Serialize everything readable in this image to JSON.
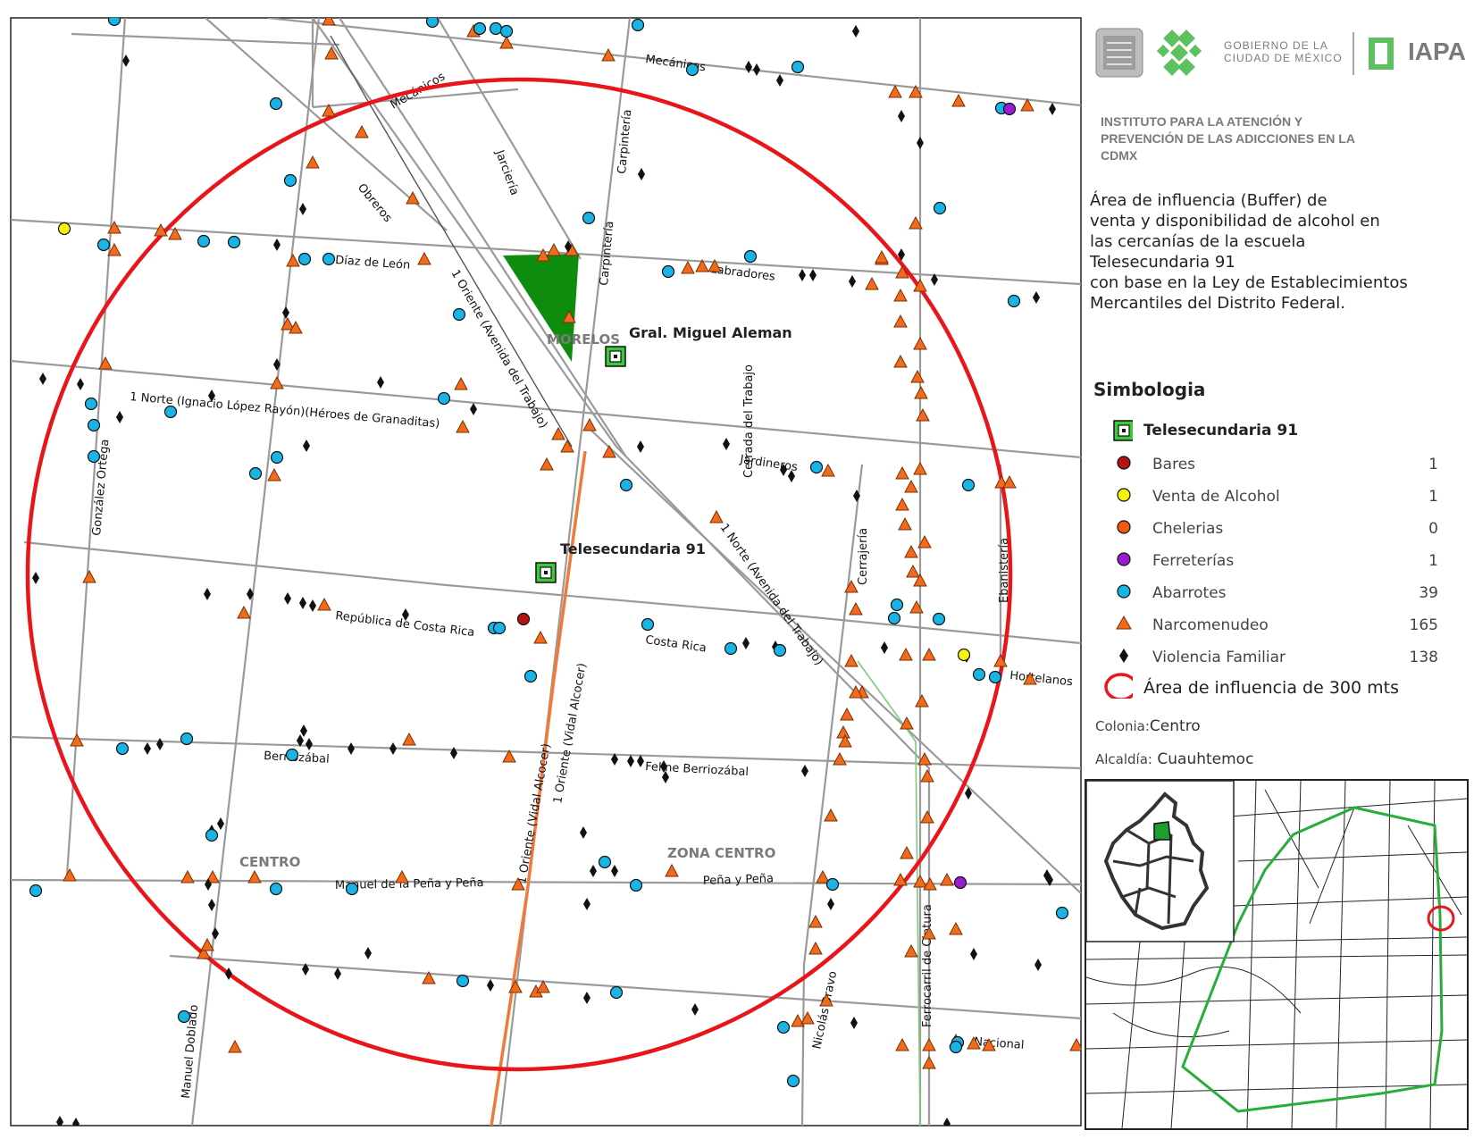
{
  "header": {
    "gov_line1": "GOBIERNO DE LA",
    "gov_line2": "CIUDAD DE MÉXICO",
    "brand": "IAPA",
    "institute": "INSTITUTO PARA LA ATENCIÓN Y PREVENCIÓN DE LAS ADICCIONES EN LA CDMX"
  },
  "description": {
    "line1": "Área de influencia (Buffer) de",
    "line2": "venta y disponibilidad de alcohol en",
    "line3": "las cercanías de la escuela",
    "line4": "Telesecundaria 91",
    "line5": "con base en la Ley de Establecimientos",
    "line6": "Mercantiles del Distrito Federal."
  },
  "legend": {
    "title": "Simbologia",
    "school": "Telesecundaria 91",
    "items": [
      {
        "label": "Bares",
        "count": "1",
        "color": "#b31313",
        "shape": "circle"
      },
      {
        "label": "Venta de Alcohol",
        "count": "1",
        "color": "#f5f50a",
        "shape": "circle"
      },
      {
        "label": "Chelerias",
        "count": "0",
        "color": "#f05a14",
        "shape": "circle"
      },
      {
        "label": "Ferreterías",
        "count": "1",
        "color": "#9b1bd1",
        "shape": "circle"
      },
      {
        "label": "Abarrotes",
        "count": "39",
        "color": "#1ab3e6",
        "shape": "circle"
      },
      {
        "label": "Narcomenudeo",
        "count": "165",
        "color": "#f26b1d",
        "shape": "triangle"
      },
      {
        "label": "Violencia Familiar",
        "count": "138",
        "color": "#111111",
        "shape": "diamond"
      }
    ],
    "area": "Área de influencia de 300 mts"
  },
  "meta": {
    "colonia_label": "Colonia:",
    "colonia": "Centro",
    "alcaldia_label": "Alcaldía:",
    "alcaldia": "Cuauhtemoc"
  },
  "map": {
    "places": [
      "MORELOS",
      "CENTRO",
      "ZONA CENTRO"
    ],
    "schools": [
      "Gral. Miguel Aleman",
      "Telesecundaria 91"
    ],
    "streets": [
      "Mecánicos",
      "Mecánicos",
      "Obreros",
      "Jarciería",
      "Carpintería",
      "Carpintería",
      "Díaz de León",
      "Labradores",
      "1 Oriente (Avenida del Trabajo)",
      "1 Norte (Ignacio López Rayón)(Héroes de Granaditas)",
      "González Ortega",
      "Cerrada del Trabajo",
      "Jardineros",
      "Cerrajería",
      "Ebanistería",
      "1 Norte (Avenida del Trabajo)",
      "República de Costa Rica",
      "Costa Rica",
      "1 Oriente (Vidal Alcocer)",
      "1 Oriente (Vidal Alcocer)",
      "Hortelanos",
      "Berriozábal",
      "Feline Berriozábal",
      "Manuel de la Peña y Peña",
      "Peña y Peña",
      "Ferrocarril de Cintura",
      "Nicolás Bravo",
      "Manuel Doblado",
      "Nacional"
    ],
    "colors": {
      "buffer": "#e8161b",
      "school_green": "#3cc83c",
      "park": "#0e8c0e",
      "road": "#9a9a9a",
      "route": "#f07a3c"
    }
  }
}
